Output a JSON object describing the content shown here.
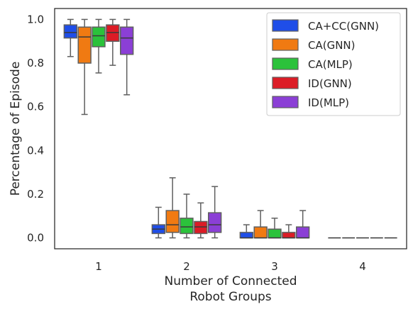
{
  "chart_data": {
    "type": "boxplot",
    "title": "",
    "xlabel_lines": [
      "Number of Connected",
      "Robot Groups"
    ],
    "ylabel": "Percentage of Episode",
    "categories": [
      "1",
      "2",
      "3",
      "4"
    ],
    "ylim": [
      -0.05,
      1.05
    ],
    "yticks": [
      0.0,
      0.2,
      0.4,
      0.6,
      0.8,
      1.0
    ],
    "ytick_labels": [
      "0.0",
      "0.2",
      "0.4",
      "0.6",
      "0.8",
      "1.0"
    ],
    "grid": false,
    "legend_position": "top-right",
    "series": [
      {
        "name": "CA+CC(GNN)",
        "color": "#1f4ee8",
        "boxes": [
          {
            "whislo": 0.83,
            "q1": 0.915,
            "median": 0.94,
            "q3": 0.975,
            "whishi": 1.0
          },
          {
            "whislo": 0.0,
            "q1": 0.02,
            "median": 0.04,
            "q3": 0.06,
            "whishi": 0.14
          },
          {
            "whislo": 0.0,
            "q1": 0.0,
            "median": 0.0,
            "q3": 0.025,
            "whishi": 0.06
          },
          {
            "whislo": 0.0,
            "q1": 0.0,
            "median": 0.0,
            "q3": 0.0,
            "whishi": 0.0
          }
        ]
      },
      {
        "name": "CA(GNN)",
        "color": "#f07a12",
        "boxes": [
          {
            "whislo": 0.565,
            "q1": 0.8,
            "median": 0.92,
            "q3": 0.965,
            "whishi": 1.0
          },
          {
            "whislo": 0.0,
            "q1": 0.025,
            "median": 0.06,
            "q3": 0.125,
            "whishi": 0.275
          },
          {
            "whislo": 0.0,
            "q1": 0.0,
            "median": 0.0,
            "q3": 0.05,
            "whishi": 0.125
          },
          {
            "whislo": 0.0,
            "q1": 0.0,
            "median": 0.0,
            "q3": 0.0,
            "whishi": 0.0
          }
        ]
      },
      {
        "name": "CA(MLP)",
        "color": "#2bc23b",
        "boxes": [
          {
            "whislo": 0.755,
            "q1": 0.875,
            "median": 0.925,
            "q3": 0.965,
            "whishi": 1.0
          },
          {
            "whislo": 0.0,
            "q1": 0.02,
            "median": 0.05,
            "q3": 0.09,
            "whishi": 0.2
          },
          {
            "whislo": 0.0,
            "q1": 0.0,
            "median": 0.0,
            "q3": 0.04,
            "whishi": 0.09
          },
          {
            "whislo": 0.0,
            "q1": 0.0,
            "median": 0.0,
            "q3": 0.0,
            "whishi": 0.0
          }
        ]
      },
      {
        "name": "ID(GNN)",
        "color": "#dc1c26",
        "boxes": [
          {
            "whislo": 0.79,
            "q1": 0.9,
            "median": 0.94,
            "q3": 0.975,
            "whishi": 1.0
          },
          {
            "whislo": 0.0,
            "q1": 0.02,
            "median": 0.05,
            "q3": 0.075,
            "whishi": 0.16
          },
          {
            "whislo": 0.0,
            "q1": 0.0,
            "median": 0.0,
            "q3": 0.025,
            "whishi": 0.06
          },
          {
            "whislo": 0.0,
            "q1": 0.0,
            "median": 0.0,
            "q3": 0.0,
            "whishi": 0.0
          }
        ]
      },
      {
        "name": "ID(MLP)",
        "color": "#8b3fd6",
        "boxes": [
          {
            "whislo": 0.655,
            "q1": 0.84,
            "median": 0.915,
            "q3": 0.965,
            "whishi": 1.0
          },
          {
            "whislo": 0.0,
            "q1": 0.025,
            "median": 0.06,
            "q3": 0.115,
            "whishi": 0.235
          },
          {
            "whislo": 0.0,
            "q1": 0.0,
            "median": 0.0,
            "q3": 0.05,
            "whishi": 0.125
          },
          {
            "whislo": 0.0,
            "q1": 0.0,
            "median": 0.0,
            "q3": 0.0,
            "whishi": 0.0
          }
        ]
      }
    ]
  }
}
